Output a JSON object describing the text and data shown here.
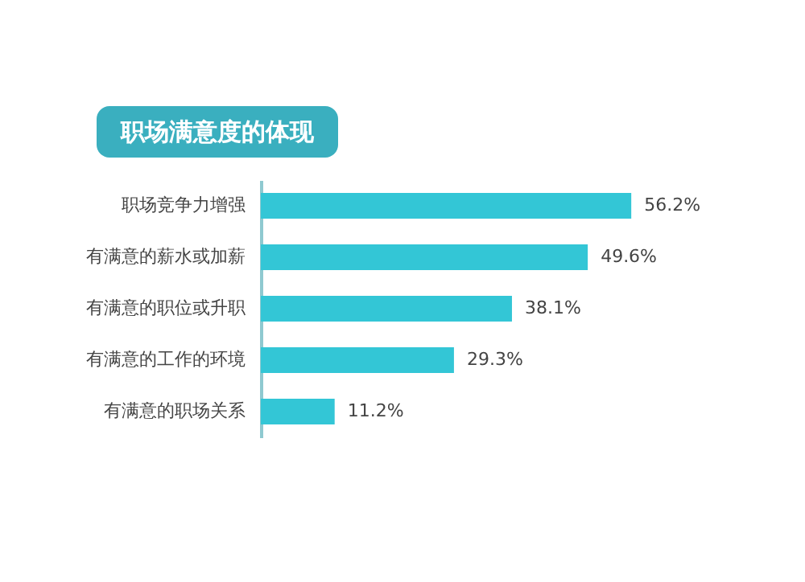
{
  "chart_data": {
    "type": "bar",
    "orientation": "horizontal",
    "title": "职场满意度的体现",
    "categories": [
      "职场竞争力增强",
      "有满意的薪水或加薪",
      "有满意的职位或升职",
      "有满意的工作的环境",
      "有满意的职场关系"
    ],
    "values": [
      56.2,
      49.6,
      38.1,
      29.3,
      11.2
    ],
    "value_labels": [
      "56.2%",
      "49.6%",
      "38.1%",
      "29.3%",
      "11.2%"
    ],
    "color": "#33c6d6"
  }
}
